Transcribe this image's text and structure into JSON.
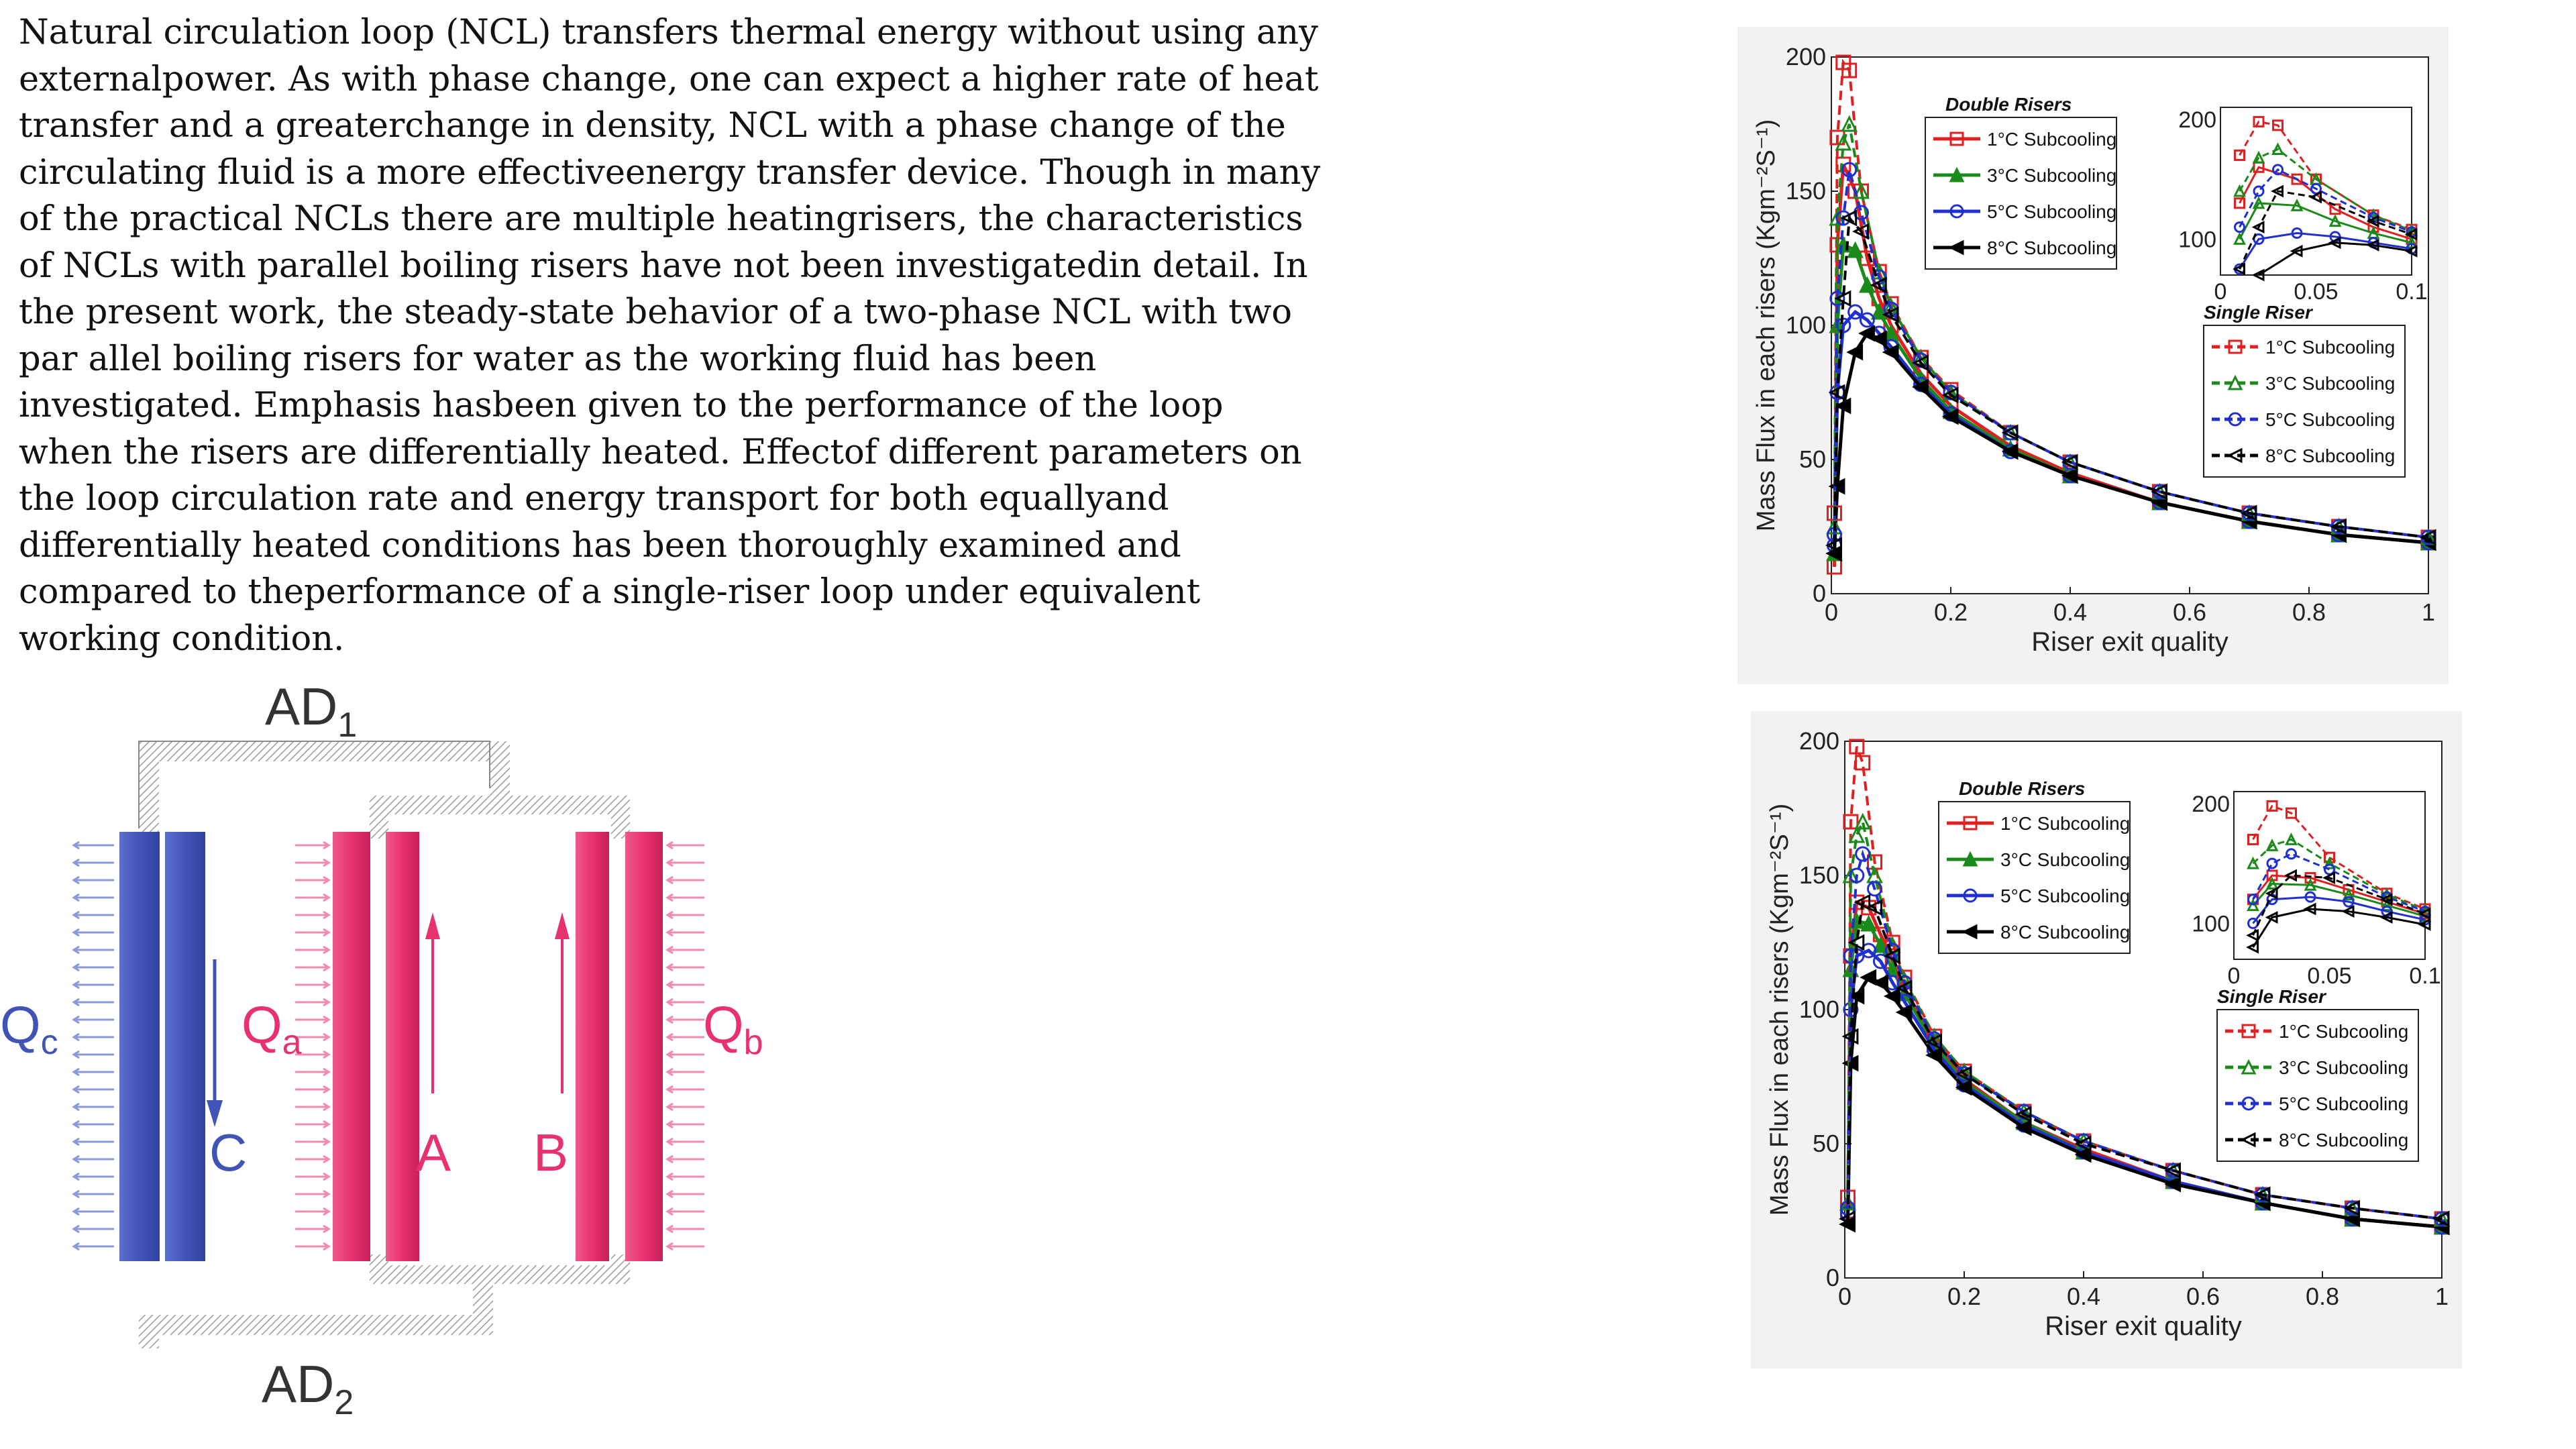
{
  "abstract": {
    "lines": [
      "Natural circulation loop (NCL) transfers thermal energy without using any",
      "externalpower. As with phase change, one can expect a higher rate of heat",
      "transfer and a greaterchange in density, NCL with a phase change of the",
      "circulating fluid is a more effectiveenergy transfer device. Though in many",
      "of the practical NCLs there are multiple heatingrisers, the characteristics",
      "of NCLs with parallel boiling risers have not been investigatedin detail. In",
      "the present work, the steady-state behavior of a two-phase NCL with two",
      "par    allel boiling risers for water as the working fluid has been",
      "investigated. Emphasis hasbeen given to the performance of the loop",
      "when the risers are differentially heated. Effectof different parameters on",
      "the loop circulation rate and energy transport for both equallyand",
      "differentially heated conditions has been thoroughly examined and",
      "compared to theperformance of a single-riser loop under equivalent",
      "working condition."
    ]
  },
  "diagram": {
    "labels": {
      "ad1": "AD",
      "ad1_sub": "1",
      "ad2": "AD",
      "ad2_sub": "2",
      "qc": "Q",
      "qc_sub": "c",
      "qa": "Q",
      "qa_sub": "a",
      "qb": "Q",
      "qb_sub": "b",
      "c": "C",
      "a": "A",
      "b": "B"
    },
    "colors": {
      "cooler": "#3f54b5",
      "heater": "#e8326f",
      "pipe": "#9a9a9a"
    }
  },
  "chart_data": [
    {
      "type": "line",
      "xlabel": "Riser exit quality",
      "ylabel": "Mass Flux in each risers (Kgm⁻²S⁻¹)",
      "xlim": [
        0,
        1
      ],
      "ylim": [
        0,
        200
      ],
      "xticks": [
        "0",
        "0.2",
        "0.4",
        "0.6",
        "0.8",
        "1"
      ],
      "yticks": [
        "0",
        "50",
        "100",
        "150",
        "200"
      ],
      "legend_double_title": "Double Risers",
      "legend_single_title": "Single Riser",
      "series": [
        {
          "name": "1°C Subcooling",
          "group": "double",
          "color": "#e02020",
          "marker": "square",
          "x": [
            0.005,
            0.01,
            0.02,
            0.04,
            0.06,
            0.08,
            0.1,
            0.15,
            0.2,
            0.3,
            0.4,
            0.55,
            0.7,
            0.85,
            1.0
          ],
          "y": [
            10,
            130,
            160,
            150,
            125,
            110,
            100,
            82,
            70,
            55,
            45,
            34,
            27,
            22,
            19
          ]
        },
        {
          "name": "3°C Subcooling",
          "group": "double",
          "color": "#1a8a1a",
          "marker": "triangle",
          "x": [
            0.005,
            0.01,
            0.02,
            0.04,
            0.06,
            0.08,
            0.1,
            0.15,
            0.2,
            0.3,
            0.4,
            0.55,
            0.7,
            0.85,
            1.0
          ],
          "y": [
            15,
            100,
            130,
            128,
            115,
            105,
            97,
            80,
            68,
            54,
            44,
            34,
            27,
            22,
            19
          ]
        },
        {
          "name": "5°C Subcooling",
          "group": "double",
          "color": "#2030d0",
          "marker": "circle",
          "x": [
            0.005,
            0.01,
            0.02,
            0.04,
            0.06,
            0.08,
            0.1,
            0.15,
            0.2,
            0.3,
            0.4,
            0.55,
            0.7,
            0.85,
            1.0
          ],
          "y": [
            18,
            75,
            100,
            105,
            102,
            97,
            92,
            78,
            67,
            53,
            44,
            34,
            27,
            22,
            19
          ]
        },
        {
          "name": "8°C Subcooling",
          "group": "double",
          "color": "#000000",
          "marker": "triangle-left",
          "x": [
            0.005,
            0.01,
            0.02,
            0.04,
            0.06,
            0.08,
            0.1,
            0.15,
            0.2,
            0.3,
            0.4,
            0.55,
            0.7,
            0.85,
            1.0
          ],
          "y": [
            15,
            40,
            70,
            90,
            97,
            95,
            90,
            77,
            66,
            53,
            44,
            34,
            27,
            22,
            19
          ]
        },
        {
          "name": "1°C Subcooling",
          "group": "single",
          "color": "#e02020",
          "marker": "square",
          "x": [
            0.005,
            0.01,
            0.02,
            0.03,
            0.05,
            0.08,
            0.1,
            0.15,
            0.2,
            0.3,
            0.4,
            0.55,
            0.7,
            0.85,
            1.0
          ],
          "y": [
            30,
            170,
            198,
            195,
            150,
            120,
            108,
            88,
            76,
            60,
            49,
            38,
            30,
            25,
            21
          ]
        },
        {
          "name": "3°C Subcooling",
          "group": "single",
          "color": "#1a8a1a",
          "marker": "triangle",
          "x": [
            0.005,
            0.01,
            0.02,
            0.03,
            0.05,
            0.08,
            0.1,
            0.15,
            0.2,
            0.3,
            0.4,
            0.55,
            0.7,
            0.85,
            1.0
          ],
          "y": [
            25,
            140,
            168,
            175,
            150,
            120,
            107,
            88,
            75,
            60,
            49,
            38,
            30,
            25,
            21
          ]
        },
        {
          "name": "5°C Subcooling",
          "group": "single",
          "color": "#2030d0",
          "marker": "circle",
          "x": [
            0.005,
            0.01,
            0.02,
            0.03,
            0.05,
            0.08,
            0.1,
            0.15,
            0.2,
            0.3,
            0.4,
            0.55,
            0.7,
            0.85,
            1.0
          ],
          "y": [
            22,
            110,
            140,
            158,
            142,
            118,
            106,
            87,
            75,
            60,
            49,
            38,
            30,
            25,
            21
          ]
        },
        {
          "name": "8°C Subcooling",
          "group": "single",
          "color": "#000000",
          "marker": "triangle-left",
          "x": [
            0.005,
            0.01,
            0.02,
            0.03,
            0.05,
            0.08,
            0.1,
            0.15,
            0.2,
            0.3,
            0.4,
            0.55,
            0.7,
            0.85,
            1.0
          ],
          "y": [
            18,
            75,
            110,
            140,
            135,
            115,
            104,
            86,
            74,
            60,
            49,
            38,
            30,
            25,
            21
          ]
        }
      ],
      "inset": {
        "xlim": [
          0,
          0.1
        ],
        "ylim": [
          70,
          210
        ],
        "xticks": [
          "0",
          "0.05",
          "0.1"
        ],
        "yticks": [
          "100",
          "200"
        ]
      }
    },
    {
      "type": "line",
      "xlabel": "Riser exit quality",
      "ylabel": "Mass Flux in each risers (Kgm⁻²S⁻¹)",
      "xlim": [
        0,
        1
      ],
      "ylim": [
        0,
        200
      ],
      "xticks": [
        "0",
        "0.2",
        "0.4",
        "0.6",
        "0.8",
        "1"
      ],
      "yticks": [
        "0",
        "50",
        "100",
        "150",
        "200"
      ],
      "legend_double_title": "Double Risers",
      "legend_single_title": "Single Riser",
      "series": [
        {
          "name": "1°C Subcooling",
          "group": "double",
          "color": "#e02020",
          "marker": "square",
          "x": [
            0.005,
            0.01,
            0.02,
            0.04,
            0.06,
            0.08,
            0.1,
            0.15,
            0.2,
            0.3,
            0.4,
            0.55,
            0.7,
            0.85,
            1.0
          ],
          "y": [
            25,
            120,
            140,
            138,
            128,
            118,
            108,
            88,
            74,
            58,
            48,
            36,
            28,
            22,
            19
          ]
        },
        {
          "name": "3°C Subcooling",
          "group": "double",
          "color": "#1a8a1a",
          "marker": "triangle",
          "x": [
            0.005,
            0.01,
            0.02,
            0.04,
            0.06,
            0.08,
            0.1,
            0.15,
            0.2,
            0.3,
            0.4,
            0.55,
            0.7,
            0.85,
            1.0
          ],
          "y": [
            28,
            115,
            133,
            132,
            124,
            115,
            106,
            87,
            73,
            58,
            47,
            36,
            28,
            22,
            19
          ]
        },
        {
          "name": "5°C Subcooling",
          "group": "double",
          "color": "#2030d0",
          "marker": "circle",
          "x": [
            0.005,
            0.01,
            0.02,
            0.04,
            0.06,
            0.08,
            0.1,
            0.15,
            0.2,
            0.3,
            0.4,
            0.55,
            0.7,
            0.85,
            1.0
          ],
          "y": [
            24,
            100,
            120,
            122,
            118,
            110,
            103,
            85,
            72,
            57,
            47,
            36,
            28,
            22,
            19
          ]
        },
        {
          "name": "8°C Subcooling",
          "group": "double",
          "color": "#000000",
          "marker": "triangle-left",
          "x": [
            0.005,
            0.01,
            0.02,
            0.04,
            0.06,
            0.08,
            0.1,
            0.15,
            0.2,
            0.3,
            0.4,
            0.55,
            0.7,
            0.85,
            1.0
          ],
          "y": [
            20,
            80,
            105,
            112,
            110,
            105,
            99,
            83,
            71,
            56,
            46,
            35,
            28,
            22,
            19
          ]
        },
        {
          "name": "1°C Subcooling",
          "group": "single",
          "color": "#e02020",
          "marker": "square",
          "x": [
            0.005,
            0.01,
            0.02,
            0.03,
            0.05,
            0.08,
            0.1,
            0.15,
            0.2,
            0.3,
            0.4,
            0.55,
            0.7,
            0.85,
            1.0
          ],
          "y": [
            30,
            170,
            198,
            192,
            155,
            125,
            112,
            90,
            77,
            62,
            51,
            40,
            31,
            26,
            22
          ]
        },
        {
          "name": "3°C Subcooling",
          "group": "single",
          "color": "#1a8a1a",
          "marker": "triangle",
          "x": [
            0.005,
            0.01,
            0.02,
            0.03,
            0.05,
            0.08,
            0.1,
            0.15,
            0.2,
            0.3,
            0.4,
            0.55,
            0.7,
            0.85,
            1.0
          ],
          "y": [
            28,
            150,
            165,
            170,
            150,
            124,
            111,
            90,
            77,
            62,
            51,
            40,
            31,
            26,
            22
          ]
        },
        {
          "name": "5°C Subcooling",
          "group": "single",
          "color": "#2030d0",
          "marker": "circle",
          "x": [
            0.005,
            0.01,
            0.02,
            0.03,
            0.05,
            0.08,
            0.1,
            0.15,
            0.2,
            0.3,
            0.4,
            0.55,
            0.7,
            0.85,
            1.0
          ],
          "y": [
            26,
            120,
            150,
            158,
            145,
            122,
            110,
            89,
            76,
            62,
            51,
            40,
            31,
            26,
            22
          ]
        },
        {
          "name": "8°C Subcooling",
          "group": "single",
          "color": "#000000",
          "marker": "triangle-left",
          "x": [
            0.005,
            0.01,
            0.02,
            0.03,
            0.05,
            0.08,
            0.1,
            0.15,
            0.2,
            0.3,
            0.4,
            0.55,
            0.7,
            0.85,
            1.0
          ],
          "y": [
            22,
            90,
            125,
            140,
            138,
            120,
            108,
            88,
            76,
            61,
            50,
            40,
            31,
            26,
            22
          ]
        }
      ],
      "inset": {
        "xlim": [
          0,
          0.1
        ],
        "ylim": [
          70,
          210
        ],
        "xticks": [
          "0",
          "0.05",
          "0.1"
        ],
        "yticks": [
          "100",
          "200"
        ]
      }
    }
  ]
}
